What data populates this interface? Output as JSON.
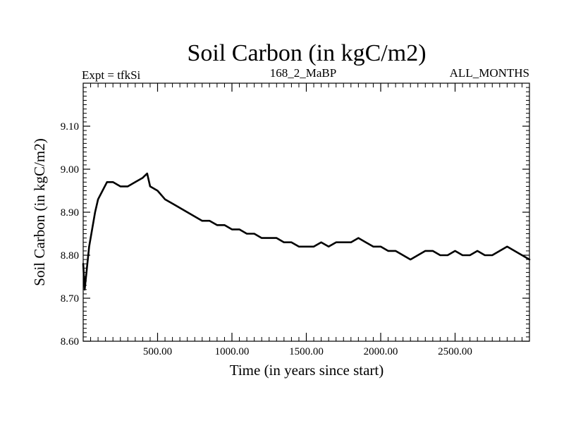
{
  "chart_data": {
    "type": "line",
    "title": "Soil Carbon (in kgC/m2)",
    "experiment_label": "Expt = tfkSi",
    "period_label": "168_2_MaBP",
    "months_label": "ALL_MONTHS",
    "xlabel": "Time (in years since start)",
    "ylabel": "Soil Carbon (in kgC/m2)",
    "xlim": [
      0,
      3000
    ],
    "ylim": [
      8.6,
      9.2
    ],
    "x_ticks": [
      {
        "value": 500,
        "label": "500.00"
      },
      {
        "value": 1000,
        "label": "1000.00"
      },
      {
        "value": 1500,
        "label": "1500.00"
      },
      {
        "value": 2000,
        "label": "2000.00"
      },
      {
        "value": 2500,
        "label": "2500.00"
      }
    ],
    "y_ticks": [
      {
        "value": 8.6,
        "label": "8.60"
      },
      {
        "value": 8.7,
        "label": "8.70"
      },
      {
        "value": 8.8,
        "label": "8.80"
      },
      {
        "value": 8.9,
        "label": "8.90"
      },
      {
        "value": 9.0,
        "label": "9.00"
      },
      {
        "value": 9.1,
        "label": "9.10"
      }
    ],
    "grid": false,
    "series": [
      {
        "name": "Soil Carbon",
        "color": "#000000",
        "x": [
          0,
          10,
          25,
          40,
          60,
          80,
          100,
          130,
          160,
          200,
          250,
          300,
          350,
          400,
          430,
          450,
          500,
          550,
          600,
          650,
          700,
          750,
          800,
          850,
          900,
          950,
          1000,
          1050,
          1100,
          1150,
          1200,
          1250,
          1300,
          1350,
          1400,
          1450,
          1500,
          1550,
          1600,
          1650,
          1700,
          1750,
          1800,
          1850,
          1900,
          1950,
          2000,
          2050,
          2100,
          2150,
          2200,
          2250,
          2300,
          2350,
          2400,
          2450,
          2500,
          2550,
          2600,
          2650,
          2700,
          2750,
          2800,
          2850,
          2900,
          2950,
          3000
        ],
        "y": [
          8.78,
          8.72,
          8.77,
          8.82,
          8.86,
          8.9,
          8.93,
          8.95,
          8.97,
          8.97,
          8.96,
          8.96,
          8.97,
          8.98,
          8.99,
          8.96,
          8.95,
          8.93,
          8.92,
          8.91,
          8.9,
          8.89,
          8.88,
          8.88,
          8.87,
          8.87,
          8.86,
          8.86,
          8.85,
          8.85,
          8.84,
          8.84,
          8.84,
          8.83,
          8.83,
          8.82,
          8.82,
          8.82,
          8.83,
          8.82,
          8.83,
          8.83,
          8.83,
          8.84,
          8.83,
          8.82,
          8.82,
          8.81,
          8.81,
          8.8,
          8.79,
          8.8,
          8.81,
          8.81,
          8.8,
          8.8,
          8.81,
          8.8,
          8.8,
          8.81,
          8.8,
          8.8,
          8.81,
          8.82,
          8.81,
          8.8,
          8.79
        ]
      }
    ]
  }
}
